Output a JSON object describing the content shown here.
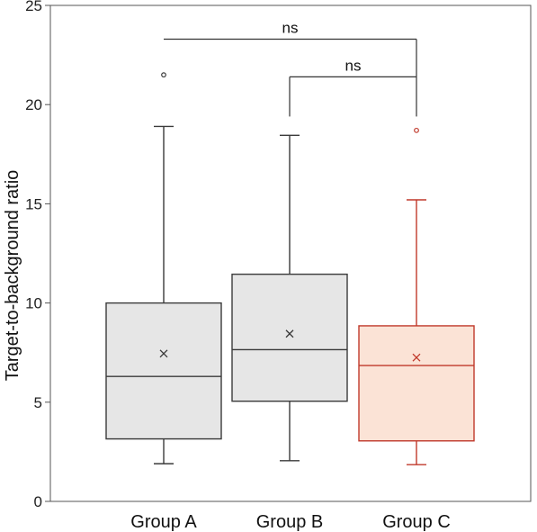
{
  "chart_data": {
    "type": "box",
    "ylabel": "Target-to-background ratio",
    "xlabel": "",
    "ylim": [
      0,
      25
    ],
    "yticks": [
      0,
      5,
      10,
      15,
      20,
      25
    ],
    "categories": [
      "Group A",
      "Group B",
      "Group C"
    ],
    "boxes": [
      {
        "category": "Group A",
        "whisker_low": 1.9,
        "q1": 3.15,
        "median": 6.3,
        "q3": 10.0,
        "whisker_high": 18.9,
        "mean": 7.45,
        "outliers": [
          21.5
        ],
        "color": "#3a3a3a",
        "fill": "#e6e6e6"
      },
      {
        "category": "Group B",
        "whisker_low": 2.05,
        "q1": 5.05,
        "median": 7.65,
        "q3": 11.45,
        "whisker_high": 18.45,
        "mean": 8.45,
        "outliers": [],
        "color": "#3a3a3a",
        "fill": "#e6e6e6"
      },
      {
        "category": "Group C",
        "whisker_low": 1.85,
        "q1": 3.05,
        "median": 6.85,
        "q3": 8.85,
        "whisker_high": 15.2,
        "mean": 7.25,
        "outliers": [
          18.7
        ],
        "color": "#c0392b",
        "fill": "#fbe3d6"
      }
    ],
    "comparisons": [
      {
        "from": "Group A",
        "to": "Group C",
        "y_top": 23.3,
        "y_left_end": 23.3,
        "y_right_end": 21.4,
        "label": "ns"
      },
      {
        "from": "Group B",
        "to": "Group C",
        "y_top": 21.4,
        "y_left_end": 19.4,
        "y_right_end": 19.4,
        "label": "ns"
      }
    ],
    "grid": false,
    "legend": "none"
  }
}
